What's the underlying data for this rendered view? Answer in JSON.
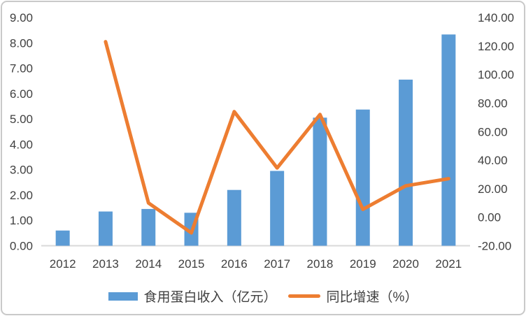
{
  "chart_data": {
    "type": "bar",
    "subtype": "combo-bar-line-dual-axis",
    "title": "",
    "categories": [
      "2012",
      "2013",
      "2014",
      "2015",
      "2016",
      "2017",
      "2018",
      "2019",
      "2020",
      "2021"
    ],
    "series": [
      {
        "name": "食用蛋白收入（亿元）",
        "chart_type": "bar",
        "axis": "left",
        "color": "#5B9BD5",
        "values": [
          0.6,
          1.35,
          1.45,
          1.3,
          2.2,
          2.95,
          5.05,
          5.37,
          6.55,
          8.33
        ]
      },
      {
        "name": "同比增速（%）",
        "chart_type": "line",
        "axis": "right",
        "color": "#ED7D31",
        "values": [
          null,
          123.0,
          10.0,
          -11.0,
          74.0,
          34.5,
          72.0,
          5.5,
          22.0,
          27.0
        ]
      }
    ],
    "left_axis": {
      "min": 0,
      "max": 9,
      "step": 1,
      "tick_labels": [
        "0.00",
        "1.00",
        "2.00",
        "3.00",
        "4.00",
        "5.00",
        "6.00",
        "7.00",
        "8.00",
        "9.00"
      ]
    },
    "right_axis": {
      "min": -20,
      "max": 140,
      "step": 20,
      "tick_labels": [
        "-20.00",
        "0.00",
        "20.00",
        "40.00",
        "60.00",
        "80.00",
        "100.00",
        "120.00",
        "140.00"
      ]
    },
    "xlabel": "",
    "ylabel": "",
    "grid": false,
    "legend_position": "bottom",
    "axis_line_color": "#D9D9D9",
    "text_color": "#404040",
    "background_color": "#FFFFFF",
    "border_color": "#C9C9C9"
  }
}
